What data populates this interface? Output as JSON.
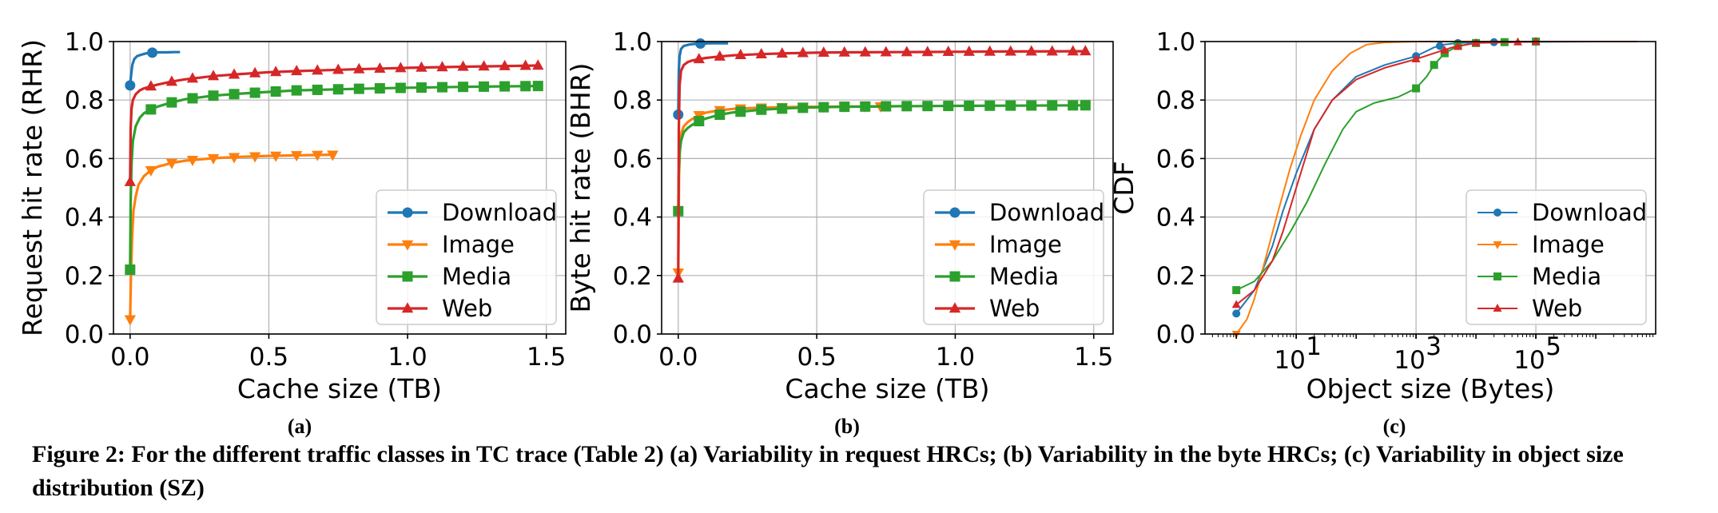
{
  "caption": "Figure 2: For the different traffic classes in TC trace (Table 2) (a) Variability in request HRCs; (b) Variability in the byte HRCs; (c) Variability in object size distribution (SZ)",
  "colors": {
    "Download": "#1f77b4",
    "Image": "#ff7f0e",
    "Media": "#2ca02c",
    "Web": "#d62728"
  },
  "chart_data": [
    {
      "type": "line",
      "sublabel": "(a)",
      "xlabel": "Cache size (TB)",
      "ylabel": "Request hit rate (RHR)",
      "xlim": [
        -0.06,
        1.57
      ],
      "ylim": [
        0.0,
        1.0
      ],
      "x_ticks": [
        0.0,
        0.5,
        1.0,
        1.5
      ],
      "x_tick_labels": [
        "0.0",
        "0.5",
        "1.0",
        "1.5"
      ],
      "y_ticks": [
        0.0,
        0.2,
        0.4,
        0.6,
        0.8,
        1.0
      ],
      "y_tick_labels": [
        "0.0",
        "0.2",
        "0.4",
        "0.6",
        "0.8",
        "1.0"
      ],
      "grid": true,
      "legend_position": "lower-right",
      "series": [
        {
          "name": "Download",
          "marker": "o",
          "x": [
            0,
            0.003,
            0.008,
            0.015,
            0.025,
            0.04,
            0.06,
            0.08,
            0.1,
            0.13,
            0.16,
            0.18
          ],
          "y": [
            0.85,
            0.88,
            0.92,
            0.94,
            0.95,
            0.955,
            0.96,
            0.962,
            0.963,
            0.963,
            0.964,
            0.964
          ],
          "markers_x": [
            0,
            0.08
          ]
        },
        {
          "name": "Image",
          "marker": "v",
          "x": [
            0,
            0.003,
            0.007,
            0.012,
            0.02,
            0.03,
            0.05,
            0.075,
            0.1,
            0.15,
            0.2,
            0.3,
            0.4,
            0.5,
            0.6,
            0.73
          ],
          "y": [
            0.05,
            0.2,
            0.33,
            0.42,
            0.47,
            0.51,
            0.54,
            0.56,
            0.572,
            0.585,
            0.593,
            0.601,
            0.606,
            0.609,
            0.611,
            0.613
          ],
          "markers_x": [
            0,
            0.075,
            0.15,
            0.225,
            0.3,
            0.375,
            0.45,
            0.525,
            0.6,
            0.675,
            0.73
          ]
        },
        {
          "name": "Media",
          "marker": "s",
          "x": [
            0,
            0.002,
            0.005,
            0.01,
            0.02,
            0.035,
            0.05,
            0.075,
            0.1,
            0.15,
            0.2,
            0.3,
            0.4,
            0.5,
            0.6,
            0.8,
            1.0,
            1.2,
            1.47
          ],
          "y": [
            0.22,
            0.45,
            0.58,
            0.66,
            0.71,
            0.74,
            0.755,
            0.768,
            0.778,
            0.792,
            0.803,
            0.815,
            0.822,
            0.828,
            0.833,
            0.838,
            0.842,
            0.845,
            0.848
          ],
          "markers_x": [
            0,
            0.075,
            0.15,
            0.225,
            0.3,
            0.375,
            0.45,
            0.525,
            0.6,
            0.675,
            0.75,
            0.825,
            0.9,
            0.975,
            1.05,
            1.125,
            1.2,
            1.275,
            1.35,
            1.425,
            1.47
          ]
        },
        {
          "name": "Web",
          "marker": "^",
          "x": [
            0,
            0.002,
            0.005,
            0.01,
            0.02,
            0.035,
            0.05,
            0.075,
            0.1,
            0.15,
            0.2,
            0.3,
            0.4,
            0.5,
            0.6,
            0.8,
            1.0,
            1.2,
            1.47
          ],
          "y": [
            0.52,
            0.7,
            0.77,
            0.8,
            0.82,
            0.833,
            0.84,
            0.847,
            0.853,
            0.863,
            0.871,
            0.882,
            0.889,
            0.895,
            0.899,
            0.905,
            0.91,
            0.914,
            0.918
          ],
          "markers_x": [
            0,
            0.075,
            0.15,
            0.225,
            0.3,
            0.375,
            0.45,
            0.525,
            0.6,
            0.675,
            0.75,
            0.825,
            0.9,
            0.975,
            1.05,
            1.125,
            1.2,
            1.275,
            1.35,
            1.425,
            1.47
          ]
        }
      ]
    },
    {
      "type": "line",
      "sublabel": "(b)",
      "xlabel": "Cache size (TB)",
      "ylabel": "Byte hit rate (BHR)",
      "xlim": [
        -0.06,
        1.57
      ],
      "ylim": [
        0.0,
        1.0
      ],
      "x_ticks": [
        0.0,
        0.5,
        1.0,
        1.5
      ],
      "x_tick_labels": [
        "0.0",
        "0.5",
        "1.0",
        "1.5"
      ],
      "y_ticks": [
        0.0,
        0.2,
        0.4,
        0.6,
        0.8,
        1.0
      ],
      "y_tick_labels": [
        "0.0",
        "0.2",
        "0.4",
        "0.6",
        "0.8",
        "1.0"
      ],
      "grid": true,
      "legend_position": "lower-right",
      "series": [
        {
          "name": "Download",
          "marker": "o",
          "x": [
            0,
            0.002,
            0.005,
            0.01,
            0.02,
            0.04,
            0.06,
            0.08,
            0.12,
            0.18
          ],
          "y": [
            0.75,
            0.9,
            0.95,
            0.975,
            0.985,
            0.99,
            0.992,
            0.993,
            0.994,
            0.994
          ],
          "markers_x": [
            0,
            0.08
          ]
        },
        {
          "name": "Image",
          "marker": "v",
          "x": [
            0,
            0.003,
            0.007,
            0.012,
            0.02,
            0.035,
            0.05,
            0.075,
            0.1,
            0.15,
            0.2,
            0.3,
            0.4,
            0.5,
            0.6,
            0.73
          ],
          "y": [
            0.21,
            0.55,
            0.65,
            0.69,
            0.71,
            0.725,
            0.735,
            0.748,
            0.757,
            0.765,
            0.77,
            0.774,
            0.776,
            0.777,
            0.778,
            0.778
          ],
          "markers_x": [
            0,
            0.075,
            0.15,
            0.225,
            0.3,
            0.375,
            0.45,
            0.525,
            0.6,
            0.675,
            0.73
          ]
        },
        {
          "name": "Media",
          "marker": "s",
          "x": [
            0,
            0.002,
            0.005,
            0.01,
            0.02,
            0.035,
            0.05,
            0.075,
            0.1,
            0.15,
            0.2,
            0.3,
            0.4,
            0.5,
            0.6,
            0.8,
            1.0,
            1.2,
            1.47
          ],
          "y": [
            0.42,
            0.55,
            0.62,
            0.66,
            0.69,
            0.705,
            0.715,
            0.728,
            0.737,
            0.75,
            0.758,
            0.767,
            0.772,
            0.775,
            0.777,
            0.779,
            0.78,
            0.781,
            0.782
          ],
          "markers_x": [
            0,
            0.075,
            0.15,
            0.225,
            0.3,
            0.375,
            0.45,
            0.525,
            0.6,
            0.675,
            0.75,
            0.825,
            0.9,
            0.975,
            1.05,
            1.125,
            1.2,
            1.275,
            1.35,
            1.425,
            1.47
          ]
        },
        {
          "name": "Web",
          "marker": "^",
          "x": [
            0,
            0.002,
            0.005,
            0.01,
            0.02,
            0.035,
            0.05,
            0.075,
            0.1,
            0.15,
            0.2,
            0.3,
            0.4,
            0.5,
            0.6,
            0.8,
            1.0,
            1.2,
            1.47
          ],
          "y": [
            0.19,
            0.7,
            0.85,
            0.9,
            0.92,
            0.93,
            0.935,
            0.94,
            0.944,
            0.949,
            0.953,
            0.957,
            0.96,
            0.962,
            0.963,
            0.964,
            0.965,
            0.966,
            0.967
          ],
          "markers_x": [
            0,
            0.075,
            0.15,
            0.225,
            0.3,
            0.375,
            0.45,
            0.525,
            0.6,
            0.675,
            0.75,
            0.825,
            0.9,
            0.975,
            1.05,
            1.125,
            1.2,
            1.275,
            1.35,
            1.425,
            1.47
          ]
        }
      ]
    },
    {
      "type": "line",
      "sublabel": "(c)",
      "xlabel": "Object size (Bytes)",
      "ylabel": "CDF",
      "xscale": "log",
      "xlim": [
        0.3,
        10000000
      ],
      "ylim": [
        0.0,
        1.0
      ],
      "x_ticks": [
        10,
        1000,
        100000
      ],
      "x_tick_labels": [
        {
          "base": "10",
          "exp": "1"
        },
        {
          "base": "10",
          "exp": "3"
        },
        {
          "base": "10",
          "exp": "5"
        }
      ],
      "y_ticks": [
        0.0,
        0.2,
        0.4,
        0.6,
        0.8,
        1.0
      ],
      "y_tick_labels": [
        "0.0",
        "0.2",
        "0.4",
        "0.6",
        "0.8",
        "1.0"
      ],
      "grid": true,
      "legend_position": "lower-right",
      "series": [
        {
          "name": "Download",
          "marker": "o",
          "x": [
            1,
            2,
            4,
            6,
            10,
            20,
            40,
            100,
            300,
            1000,
            2000,
            3000,
            5000,
            20000,
            100000,
            1000000,
            5000000
          ],
          "y": [
            0.07,
            0.15,
            0.3,
            0.42,
            0.55,
            0.7,
            0.8,
            0.88,
            0.92,
            0.95,
            0.98,
            0.99,
            0.995,
            0.998,
            0.999,
            1.0,
            1.0
          ],
          "markers_x": [
            1,
            1000,
            2500,
            5000,
            20000,
            100000
          ]
        },
        {
          "name": "Image",
          "marker": "v",
          "x": [
            1,
            1.5,
            2,
            3,
            5,
            8,
            12,
            20,
            40,
            80,
            150,
            300,
            1000,
            10000,
            100000,
            5000000
          ],
          "y": [
            0.0,
            0.05,
            0.12,
            0.25,
            0.42,
            0.57,
            0.68,
            0.8,
            0.9,
            0.96,
            0.99,
            0.997,
            1.0,
            1.0,
            1.0,
            1.0
          ],
          "markers_x": [
            1
          ]
        },
        {
          "name": "Media",
          "marker": "s",
          "x": [
            1,
            2,
            4,
            8,
            15,
            30,
            60,
            100,
            200,
            500,
            1000,
            1500,
            2000,
            3000,
            5000,
            10000,
            30000,
            100000,
            5000000
          ],
          "y": [
            0.15,
            0.18,
            0.25,
            0.35,
            0.45,
            0.58,
            0.7,
            0.76,
            0.79,
            0.81,
            0.84,
            0.88,
            0.92,
            0.96,
            0.985,
            0.995,
            0.998,
            1.0,
            1.0
          ],
          "markers_x": [
            1,
            1000,
            2000,
            3000,
            5000,
            10000,
            30000,
            100000
          ]
        },
        {
          "name": "Web",
          "marker": "^",
          "x": [
            1,
            2,
            4,
            6,
            10,
            20,
            40,
            100,
            300,
            1000,
            2000,
            4000,
            10000,
            50000,
            100000,
            1000000,
            5000000
          ],
          "y": [
            0.1,
            0.15,
            0.25,
            0.35,
            0.5,
            0.7,
            0.8,
            0.87,
            0.91,
            0.94,
            0.96,
            0.98,
            0.995,
            0.998,
            1.0,
            1.0,
            1.0
          ],
          "markers_x": [
            1,
            1000,
            3000,
            5000,
            10000,
            50000,
            100000
          ]
        }
      ]
    }
  ]
}
